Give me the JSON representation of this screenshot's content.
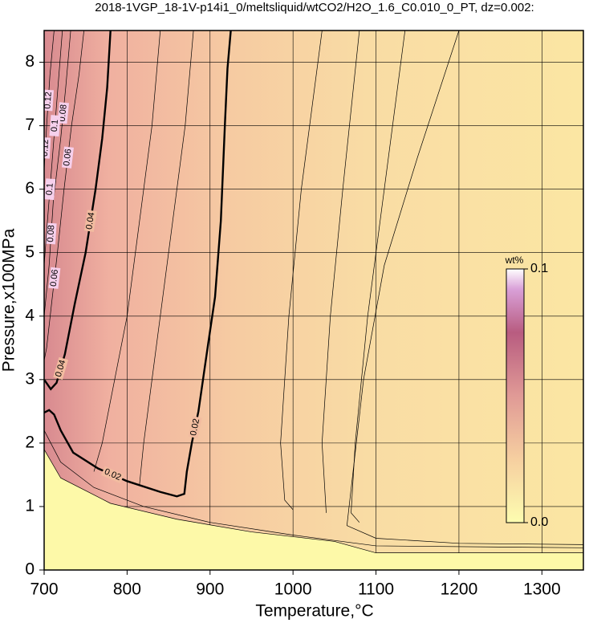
{
  "chart_data": {
    "type": "contour",
    "title": "2018-1VGP_18-1V-p14i1_0/meltsliquid/wtCO2/H2O_1.6_C0.010_0_PT, dz=0.002:",
    "x_label": "Temperature,°C",
    "y_label": "Pressure,x100MPa",
    "xlim": [
      700,
      1350
    ],
    "ylim": [
      0,
      8.5
    ],
    "xticks": [
      700,
      800,
      900,
      1000,
      1100,
      1200,
      1300
    ],
    "yticks": [
      0,
      1,
      2,
      3,
      4,
      5,
      6,
      7,
      8
    ],
    "grid": true,
    "colorbar": {
      "label": "wt%",
      "lim": [
        0,
        0.1
      ],
      "ticks": [
        {
          "value": 0,
          "label": "0.0"
        },
        0.1
      ]
    },
    "contours": [
      {
        "level": 0.02,
        "bold": true,
        "labels": [
          "0.02",
          "0.02"
        ],
        "x": [
          925,
          921,
          918,
          913,
          906,
          897,
          886,
          878,
          872,
          869,
          860,
          840,
          800,
          765,
          735,
          720,
          712,
          706,
          700
        ],
        "y": [
          8.5,
          7.9,
          7.05,
          5.5,
          4.3,
          3.5,
          2.5,
          2.0,
          1.55,
          1.2,
          1.16,
          1.23,
          1.4,
          1.6,
          1.85,
          2.2,
          2.45,
          2.52,
          2.48
        ]
      },
      {
        "level": 0.04,
        "bold": true,
        "labels": [
          "0.04",
          "0.04"
        ],
        "x": [
          780,
          776,
          770,
          762,
          750,
          737,
          725,
          715,
          708,
          700
        ],
        "y": [
          8.5,
          7.6,
          6.8,
          6.0,
          5.0,
          4.2,
          3.4,
          2.95,
          2.85,
          3.0
        ]
      },
      {
        "level": 0.06,
        "bold": false,
        "labels": [
          "0.06",
          "0.06"
        ],
        "x": [
          748,
          742,
          733,
          724,
          716,
          709,
          703,
          700
        ],
        "y": [
          8.5,
          7.8,
          7.0,
          6.0,
          5.0,
          4.2,
          3.5,
          3.3
        ]
      },
      {
        "level": 0.08,
        "bold": false,
        "labels": [
          "0.08",
          "0.08"
        ],
        "x": [
          732,
          726,
          720,
          711,
          706,
          700
        ],
        "y": [
          8.5,
          7.6,
          6.8,
          5.8,
          4.8,
          4.0
        ]
      },
      {
        "level": 0.1,
        "bold": false,
        "labels": [
          "0.1",
          "0.1"
        ],
        "x": [
          722,
          716,
          710,
          704,
          700
        ],
        "y": [
          8.5,
          7.5,
          6.5,
          5.5,
          4.8
        ]
      },
      {
        "level": 0.12,
        "bold": false,
        "labels": [
          "0.12",
          "0.12"
        ],
        "x": [
          712,
          707,
          703,
          700
        ],
        "y": [
          8.5,
          7.8,
          7.0,
          6.3
        ]
      },
      {
        "level": 0.03,
        "bold": false,
        "x": [
          840,
          830,
          815,
          800,
          785,
          770,
          760
        ],
        "y": [
          8.5,
          7,
          5.5,
          4,
          3,
          2,
          1.55
        ]
      },
      {
        "level": 0.025,
        "bold": false,
        "x": [
          880,
          870,
          855,
          840,
          830,
          820,
          815
        ],
        "y": [
          8.5,
          7,
          5.5,
          4,
          3,
          2,
          1.35
        ]
      },
      {
        "level": 0.016,
        "bold": false,
        "x": [
          1035,
          1010,
          995,
          985,
          990,
          1000
        ],
        "y": [
          8.5,
          6,
          4,
          2,
          1.1,
          0.95
        ]
      },
      {
        "level": 0.014,
        "bold": false,
        "x": [
          1080,
          1060,
          1045,
          1035,
          1040
        ],
        "y": [
          8.5,
          6,
          4,
          2,
          0.9
        ]
      },
      {
        "level": 0.012,
        "bold": false,
        "x": [
          1135,
          1110,
          1090,
          1075,
          1070,
          1080
        ],
        "y": [
          8.5,
          6,
          4,
          2,
          0.9,
          0.75
        ]
      },
      {
        "level": 0.01,
        "bold": false,
        "x": [
          1200,
          1150,
          1110,
          1085,
          1065,
          1100,
          1200,
          1350
        ],
        "y": [
          8.5,
          6.5,
          4.8,
          3,
          0.7,
          0.5,
          0.42,
          0.4
        ]
      },
      {
        "level": 0.005,
        "bold": false,
        "x": [
          700,
          720,
          760,
          820,
          900,
          1000,
          1100,
          1350
        ],
        "y": [
          2.2,
          1.7,
          1.3,
          1.0,
          0.75,
          0.55,
          0.38,
          0.35
        ]
      },
      {
        "level": 0.001,
        "bold": false,
        "x": [
          700,
          720,
          780,
          860,
          950,
          1050,
          1100,
          1350
        ],
        "y": [
          1.9,
          1.45,
          1.05,
          0.8,
          0.6,
          0.45,
          0.27,
          0.27
        ]
      }
    ]
  }
}
